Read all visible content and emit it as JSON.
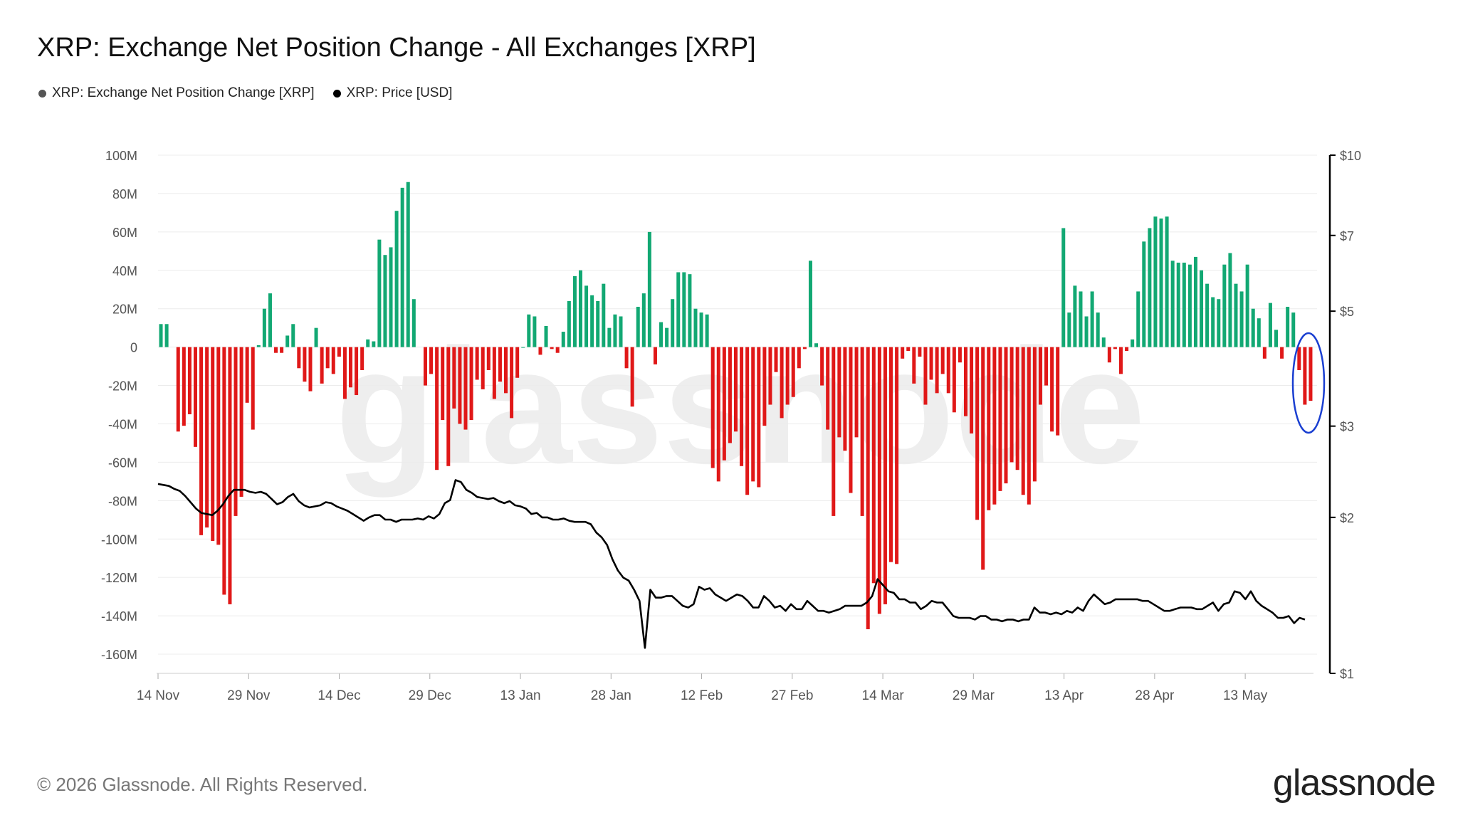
{
  "title": "XRP: Exchange Net Position Change - All Exchanges [XRP]",
  "legend": [
    {
      "label": "XRP: Exchange Net Position Change [XRP]",
      "color": "#555555"
    },
    {
      "label": "XRP: Price [USD]",
      "color": "#000000"
    }
  ],
  "footer": {
    "copyright": "© 2026 Glassnode. All Rights Reserved.",
    "logo": "glassnode"
  },
  "watermark": "glassnode",
  "colors": {
    "positive": "#12a873",
    "negative": "#e01818",
    "price": "#000000",
    "highlight": "#1a3fd1"
  },
  "chart_data": {
    "type": "bar",
    "title": "XRP: Exchange Net Position Change - All Exchanges [XRP]",
    "x_start": "2025-11-14",
    "x_ticks": [
      "14 Nov",
      "29 Nov",
      "14 Dec",
      "29 Dec",
      "13 Jan",
      "28 Jan",
      "12 Feb",
      "27 Feb",
      "14 Mar",
      "29 Mar",
      "13 Apr",
      "28 Apr",
      "13 May"
    ],
    "y_left": {
      "min": -170,
      "max": 100,
      "ticks": [
        "100M",
        "80M",
        "60M",
        "40M",
        "20M",
        "0",
        "-20M",
        "-40M",
        "-60M",
        "-80M",
        "-100M",
        "-120M",
        "-140M",
        "-160M"
      ],
      "tick_values": [
        100,
        80,
        60,
        40,
        20,
        0,
        -20,
        -40,
        -60,
        -80,
        -100,
        -120,
        -140,
        -160
      ]
    },
    "y_right": {
      "scale": "log",
      "min": 1,
      "max": 10,
      "ticks": [
        "$10",
        "$7",
        "$5",
        "$3",
        "$2",
        "$1"
      ],
      "tick_values": [
        10,
        7,
        5,
        3,
        2,
        1
      ]
    },
    "series": [
      {
        "name": "XRP: Exchange Net Position Change [XRP]",
        "type": "bar",
        "unit": "M XRP",
        "values": [
          12,
          12,
          null,
          -44,
          -41,
          -35,
          -52,
          -98,
          -94,
          -101,
          -103,
          -129,
          -134,
          -88,
          -78,
          -29,
          -43,
          1,
          20,
          28,
          -3,
          -3,
          6,
          12,
          -11,
          -18,
          -23,
          10,
          -19,
          -11,
          -14,
          -5,
          -27,
          -21,
          -25,
          -12,
          4,
          3,
          56,
          48,
          52,
          71,
          83,
          86,
          25,
          null,
          -20,
          -14,
          -64,
          -38,
          -62,
          -32,
          -40,
          -43,
          -38,
          -17,
          -22,
          -12,
          -27,
          -18,
          -24,
          -37,
          -16,
          0,
          17,
          16,
          -4,
          11,
          -1,
          -3,
          8,
          24,
          37,
          40,
          32,
          27,
          24,
          33,
          10,
          17,
          16,
          -11,
          -31,
          21,
          28,
          60,
          -9,
          13,
          10,
          25,
          39,
          39,
          38,
          20,
          18,
          17,
          -63,
          -70,
          -59,
          -50,
          -44,
          -62,
          -77,
          -70,
          -73,
          -41,
          -30,
          -13,
          -37,
          -30,
          -26,
          -11,
          -1,
          45,
          2,
          -20,
          -43,
          -88,
          -47,
          -54,
          -76,
          -47,
          -88,
          -147,
          -123,
          -139,
          -134,
          -112,
          -113,
          -6,
          -2,
          -19,
          -5,
          -30,
          -17,
          -24,
          -14,
          -24,
          -34,
          -8,
          -36,
          -45,
          -90,
          -116,
          -85,
          -82,
          -75,
          -71,
          -60,
          -64,
          -77,
          -82,
          -70,
          -30,
          -20,
          -44,
          -46,
          62,
          18,
          32,
          29,
          16,
          29,
          18,
          5,
          -8,
          -1,
          -14,
          -2,
          4,
          29,
          55,
          62,
          68,
          67,
          68,
          45,
          44,
          44,
          43,
          47,
          40,
          33,
          26,
          25,
          43,
          49,
          33,
          29,
          43,
          20,
          15,
          -6,
          23,
          9,
          -6,
          21,
          18,
          -12,
          -30,
          -28
        ]
      },
      {
        "name": "XRP: Price [USD]",
        "type": "line",
        "unit": "USD",
        "values": [
          2.32,
          2.31,
          2.3,
          2.27,
          2.25,
          2.2,
          2.14,
          2.08,
          2.04,
          2.03,
          2.02,
          2.06,
          2.12,
          2.2,
          2.26,
          2.26,
          2.26,
          2.24,
          2.23,
          2.24,
          2.22,
          2.17,
          2.12,
          2.14,
          2.19,
          2.22,
          2.15,
          2.11,
          2.09,
          2.1,
          2.11,
          2.14,
          2.13,
          2.1,
          2.08,
          2.06,
          2.03,
          2.0,
          1.97,
          2.0,
          2.02,
          2.02,
          1.98,
          1.98,
          1.96,
          1.98,
          1.98,
          1.98,
          1.99,
          1.98,
          2.01,
          1.99,
          2.03,
          2.13,
          2.16,
          2.36,
          2.34,
          2.26,
          2.23,
          2.19,
          2.18,
          2.17,
          2.18,
          2.15,
          2.13,
          2.15,
          2.11,
          2.1,
          2.08,
          2.03,
          2.04,
          2.0,
          2.0,
          1.98,
          1.98,
          1.99,
          1.97,
          1.96,
          1.96,
          1.96,
          1.94,
          1.87,
          1.83,
          1.77,
          1.66,
          1.58,
          1.53,
          1.51,
          1.45,
          1.38,
          1.12,
          1.45,
          1.4,
          1.4,
          1.41,
          1.41,
          1.38,
          1.35,
          1.34,
          1.36,
          1.47,
          1.45,
          1.46,
          1.42,
          1.4,
          1.38,
          1.4,
          1.42,
          1.41,
          1.38,
          1.34,
          1.34,
          1.41,
          1.38,
          1.34,
          1.35,
          1.32,
          1.36,
          1.33,
          1.33,
          1.38,
          1.35,
          1.32,
          1.32,
          1.31,
          1.32,
          1.33,
          1.35,
          1.35,
          1.35,
          1.35,
          1.37,
          1.41,
          1.52,
          1.48,
          1.44,
          1.43,
          1.39,
          1.39,
          1.37,
          1.37,
          1.33,
          1.35,
          1.38,
          1.37,
          1.37,
          1.33,
          1.29,
          1.28,
          1.28,
          1.28,
          1.27,
          1.29,
          1.29,
          1.27,
          1.27,
          1.26,
          1.27,
          1.27,
          1.26,
          1.27,
          1.27,
          1.34,
          1.31,
          1.31,
          1.3,
          1.31,
          1.3,
          1.32,
          1.31,
          1.34,
          1.32,
          1.38,
          1.42,
          1.39,
          1.36,
          1.37,
          1.39,
          1.39,
          1.39,
          1.39,
          1.39,
          1.38,
          1.38,
          1.36,
          1.34,
          1.32,
          1.32,
          1.33,
          1.34,
          1.34,
          1.34,
          1.33,
          1.33,
          1.35,
          1.37,
          1.32,
          1.36,
          1.37,
          1.44,
          1.43,
          1.39,
          1.44,
          1.38,
          1.35,
          1.33,
          1.31,
          1.28,
          1.28,
          1.29,
          1.25,
          1.28,
          1.27
        ]
      }
    ],
    "annotation": {
      "type": "ellipse",
      "color": "#1a3fd1",
      "around": "last four bars"
    },
    "grid": true,
    "legend_position": "top-left"
  }
}
